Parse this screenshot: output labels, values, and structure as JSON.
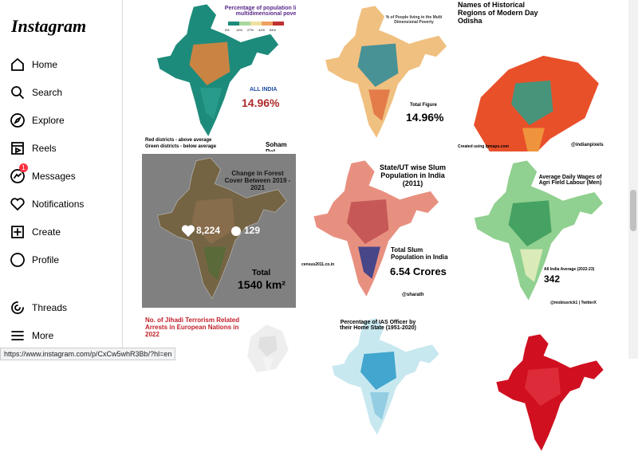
{
  "sidebar": {
    "logo": "Instagram",
    "nav": [
      {
        "label": "Home"
      },
      {
        "label": "Search"
      },
      {
        "label": "Explore"
      },
      {
        "label": "Reels"
      },
      {
        "label": "Messages",
        "badge": "1"
      },
      {
        "label": "Notifications"
      },
      {
        "label": "Create"
      },
      {
        "label": "Profile"
      }
    ],
    "bottom": [
      {
        "label": "Threads"
      },
      {
        "label": "More"
      }
    ]
  },
  "tiles": [
    {
      "title": "Percentage of population living in multidimensional poverty",
      "legend": [
        "0%",
        "14%",
        "27%",
        "41%",
        "54%"
      ],
      "lines": [
        "ALL INDIA",
        "14.96%",
        "Red districts - above average",
        "Green districts - below average",
        "Soham Pal"
      ]
    },
    {
      "title": "% of People living in the Multi Dimensional Poverty",
      "lines": [
        "Total Figure",
        "14.96%"
      ]
    },
    {
      "title": "Names of Historical Regions of Modern Day Odisha",
      "lines": [
        "Created using Ipmaps.com",
        "@indianpixels"
      ]
    },
    {
      "title": "Change in Forest Cover Between 2019 - 2021",
      "lines": [
        "Total",
        "1540 km²"
      ],
      "likes": "8,224",
      "comments": "129"
    },
    {
      "title": "State/UT wise Slum Population in India (2011)",
      "lines": [
        "Total Slum Population in India",
        "6.54 Crores",
        "census2011.co.in",
        "@sharath"
      ]
    },
    {
      "title": "Average Daily Wages of Agri Field Labour (Men)",
      "lines": [
        "All India Average (2022-23)",
        "342",
        "@mobiusrick1 | TwitterX"
      ]
    },
    {
      "title": "No. of Jihadi Terrorism Related Arrests in European Nations in 2022",
      "lines": []
    },
    {
      "title": "Percentage of IAS Officer by their Home State (1951-2020)",
      "lines": []
    },
    {
      "lines": []
    }
  ],
  "status_url": "https://www.instagram.com/p/CxCw5whR3Bb/?hl=en"
}
